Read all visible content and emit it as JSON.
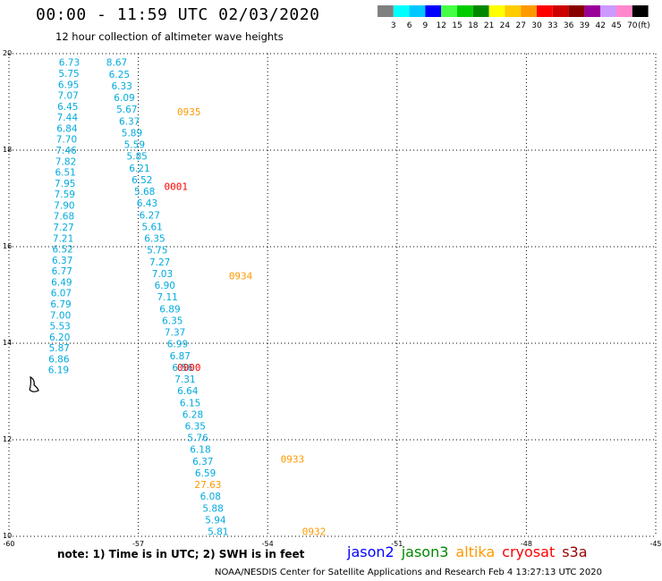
{
  "title": "00:00 - 11:59 UTC 02/03/2020",
  "subtitle": "12 hour collection of altimeter wave heights",
  "colorbar": {
    "colors": [
      "#808080",
      "#00ffff",
      "#00c8ff",
      "#0000ff",
      "#44ff44",
      "#00cc00",
      "#008800",
      "#ffff00",
      "#ffcc00",
      "#ff9900",
      "#ff0000",
      "#cc0000",
      "#880000",
      "#990099",
      "#cc99ff",
      "#ff88cc",
      "#000000"
    ],
    "labels": [
      "3",
      "6",
      "9",
      "12",
      "15",
      "18",
      "21",
      "24",
      "27",
      "30",
      "33",
      "36",
      "39",
      "42",
      "45",
      "70"
    ],
    "unit": "(ft)"
  },
  "axes": {
    "y_ticks": [
      "20",
      "18",
      "16",
      "14",
      "12",
      "10"
    ],
    "x_ticks": [
      "-60",
      "-57",
      "-54",
      "-51",
      "-48",
      "-45"
    ],
    "lon_range": [
      -60,
      -45
    ],
    "lat_range": [
      10,
      20
    ]
  },
  "colors": {
    "cyan_text": "#00aadd",
    "jason2": "#0000ff",
    "jason3": "#008800",
    "altika": "#ff9900",
    "cryosat": "#ff0000",
    "s3a": "#990000"
  },
  "tracks": [
    {
      "lon_start": -58.6,
      "lon_end": -58.85,
      "lat_start": 19.82,
      "lat_end": 13.45,
      "color": "#00aadd",
      "values": [
        "6.73",
        "5.75",
        "6.95",
        "7.07",
        "6.45",
        "7.44",
        "6.84",
        "7.70",
        "7.46",
        "7.82",
        "6.51",
        "7.95",
        "7.59",
        "7.90",
        "7.68",
        "7.27",
        "7.21",
        "6.52",
        "6.37",
        "6.77",
        "6.49",
        "6.07",
        "6.79",
        "7.00",
        "5.53",
        "6.20",
        "5.87",
        "6.86",
        "6.19"
      ]
    },
    {
      "lon_start": -57.5,
      "lon_end": -55.15,
      "lat_start": 19.82,
      "lat_end": 10.1,
      "color": "#00aadd",
      "values": [
        "8.67",
        "6.25",
        "6.33",
        "6.09",
        "5.67",
        "6.37",
        "5.89",
        "5.59",
        "5.85",
        "6.21",
        "6.52",
        "5.68",
        "6.43",
        "6.27",
        "5.61",
        "6.35",
        "5.75",
        "7.27",
        "7.03",
        "6.90",
        "7.11",
        "6.89",
        "6.35",
        "7.37",
        "6.99",
        "6.87",
        "6.56",
        "7.31",
        "6.64",
        "6.15",
        "6.28",
        "6.35",
        "5.76",
        "6.18",
        "6.37",
        "6.59",
        "27.63",
        "6.08",
        "5.88",
        "5.94",
        "5.81"
      ]
    }
  ],
  "highlight_values": {
    "27.63": "#ff9900"
  },
  "time_labels": [
    {
      "text": "0935",
      "lon": -56.1,
      "lat": 18.8,
      "color": "#ff9900"
    },
    {
      "text": "0001",
      "lon": -56.4,
      "lat": 17.25,
      "color": "#ff0000"
    },
    {
      "text": "0934",
      "lon": -54.9,
      "lat": 15.4,
      "color": "#ff9900"
    },
    {
      "text": "0000",
      "lon": -56.1,
      "lat": 13.5,
      "color": "#ff0000"
    },
    {
      "text": "0933",
      "lon": -53.7,
      "lat": 11.6,
      "color": "#ff9900"
    },
    {
      "text": "0932",
      "lon": -53.2,
      "lat": 10.1,
      "color": "#ff9900"
    }
  ],
  "note": "note:  1) Time is in UTC;  2) SWH is in feet",
  "satellites": [
    {
      "name": "jason2",
      "color": "#0000ff"
    },
    {
      "name": "jason3",
      "color": "#008800"
    },
    {
      "name": "altika",
      "color": "#ff9900"
    },
    {
      "name": "cryosat",
      "color": "#ff0000"
    },
    {
      "name": "s3a",
      "color": "#990000"
    }
  ],
  "footer": "NOAA/NESDIS Center for Satellite Applications and Research    Feb  4 13:27:13 UTC 2020"
}
